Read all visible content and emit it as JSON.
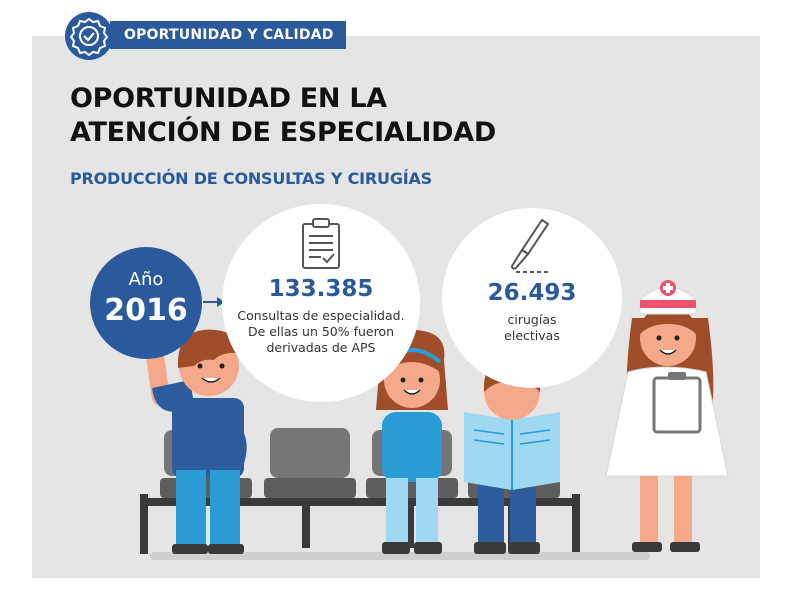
{
  "header": {
    "tag": "OPORTUNIDAD Y CALIDAD"
  },
  "title": {
    "line1": "OPORTUNIDAD EN LA",
    "line2": "ATENCIÓN DE ESPECIALIDAD"
  },
  "subtitle": "PRODUCCIÓN DE CONSULTAS Y CIRUGÍAS",
  "year": {
    "label": "Año",
    "value": "2016"
  },
  "consultas": {
    "value": "133.385",
    "line1": "Consultas de especialidad.",
    "line2": "De ellas un 50% fueron",
    "line3": "derivadas de APS"
  },
  "cirugias": {
    "value": "26.493",
    "line1": "cirugías",
    "line2": "electivas"
  },
  "colors": {
    "brand_blue": "#2b5a9c",
    "panel_gray": "#e5e5e5"
  },
  "icons": [
    "ribbon-award-icon",
    "clipboard-checklist-icon",
    "scalpel-icon",
    "arrow-right-icon"
  ]
}
